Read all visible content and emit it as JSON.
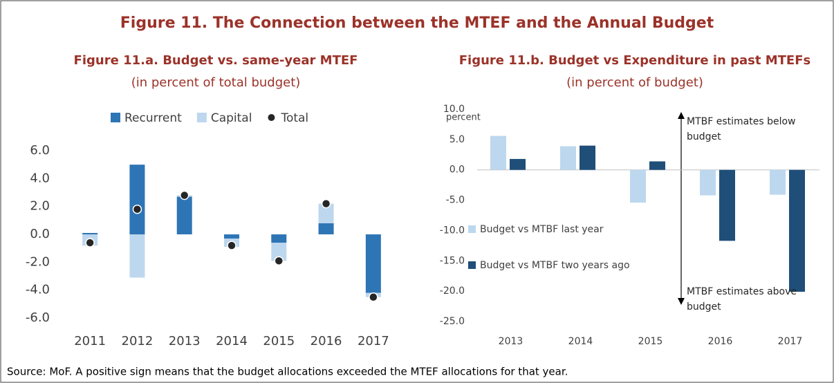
{
  "title": "Figure 11. The Connection between the MTEF and the Annual Budget",
  "source": "Source: MoF. A positive sign means that the budget allocations exceeded the MTEF allocations for that year.",
  "chart_data": [
    {
      "type": "stacked-bar",
      "title": "Figure 11.a. Budget vs. same-year MTEF",
      "subtitle": "(in percent of total budget)",
      "categories": [
        "2011",
        "2012",
        "2013",
        "2014",
        "2015",
        "2016",
        "2017"
      ],
      "series": [
        {
          "name": "Recurrent",
          "color": "#2e75b6",
          "values": [
            0.1,
            5.0,
            2.7,
            -0.3,
            -0.6,
            0.8,
            -4.2
          ]
        },
        {
          "name": "Capital",
          "color": "#bdd7ee",
          "values": [
            -0.8,
            -3.1,
            0.1,
            -0.6,
            -1.3,
            1.4,
            -0.3
          ]
        },
        {
          "name": "Total",
          "color": "#262626",
          "marker": "dot",
          "values": [
            -0.6,
            1.8,
            2.8,
            -0.8,
            -1.9,
            2.2,
            -4.5
          ]
        }
      ],
      "ylim": [
        -6,
        6
      ],
      "yticks": [
        {
          "value": -6,
          "label": "-6.0"
        },
        {
          "value": -4,
          "label": "-4.0"
        },
        {
          "value": -2,
          "label": "-2.0"
        },
        {
          "value": 0,
          "label": "0.0"
        },
        {
          "value": 2,
          "label": "2.0"
        },
        {
          "value": 4,
          "label": "4.0"
        },
        {
          "value": 6,
          "label": "6.0"
        }
      ],
      "legend": "top",
      "grid": false
    },
    {
      "type": "bar",
      "title": "Figure 11.b. Budget vs Expenditure in past MTEFs",
      "subtitle": "(in percent of budget)",
      "categories": [
        "2013",
        "2014",
        "2015",
        "2016",
        "2017"
      ],
      "series": [
        {
          "name": "Budget vs MTBF last year",
          "color": "#bdd7ee",
          "values": [
            5.6,
            3.9,
            -5.4,
            -4.2,
            -4.1
          ]
        },
        {
          "name": "Budget vs MTBF two years ago",
          "color": "#1f4e79",
          "values": [
            1.8,
            4.0,
            1.4,
            -11.7,
            -20.1
          ]
        }
      ],
      "ylim": [
        -25,
        10
      ],
      "yticks": [
        {
          "value": -25,
          "label": "-25.0"
        },
        {
          "value": -20,
          "label": "-20.0"
        },
        {
          "value": -15,
          "label": "-15.0"
        },
        {
          "value": -10,
          "label": "-10.0"
        },
        {
          "value": -5,
          "label": "-5.0"
        },
        {
          "value": 0,
          "label": "0.0"
        },
        {
          "value": 5,
          "label": "5.0"
        },
        {
          "value": 10,
          "label": "10.0"
        }
      ],
      "y_label": "percent",
      "annotations": [
        "MTBF estimates below budget",
        "MTBF estimates above budget"
      ],
      "legend": "inside-left",
      "grid": false
    }
  ]
}
